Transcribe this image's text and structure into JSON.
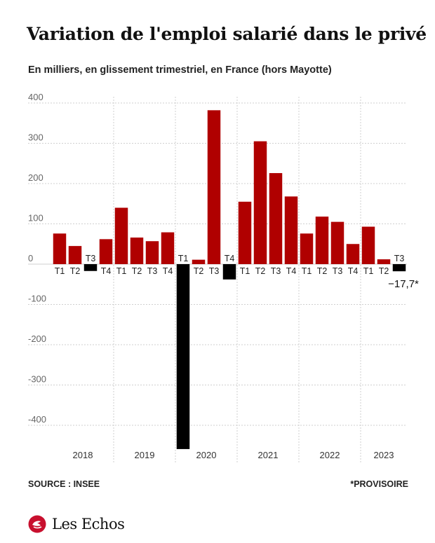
{
  "title": "Variation de l'emploi salarié dans le privé",
  "subtitle": "En milliers, en glissement trimestriel, en France (hors Mayotte)",
  "source": "SOURCE : INSEE",
  "note": "*PROVISOIRE",
  "brand": "Les Echos",
  "colors": {
    "positive": "#b00000",
    "negative": "#000000",
    "grid": "#cfcfcf",
    "axis_text": "#666666",
    "label_text": "#222222"
  },
  "chart_data": {
    "type": "bar",
    "title": "Variation de l'emploi salarié dans le privé",
    "ylim": [
      -460,
      420
    ],
    "yticks": [
      400,
      300,
      200,
      100,
      0,
      -100,
      -200,
      -300,
      -400
    ],
    "ytick_labels": [
      "400",
      "300",
      "200",
      "100",
      "0",
      "-100",
      "-200",
      "-300",
      "-400"
    ],
    "grid": true,
    "years": [
      "2018",
      "2019",
      "2020",
      "2021",
      "2022",
      "2023"
    ],
    "categories": [
      "T1",
      "T2",
      "T3",
      "T4",
      "T1",
      "T2",
      "T3",
      "T4",
      "T1",
      "T2",
      "T3",
      "T4",
      "T1",
      "T2",
      "T3",
      "T4",
      "T1",
      "T2",
      "T3",
      "T4",
      "T1",
      "T2",
      "T3"
    ],
    "year_of": [
      "2018",
      "2018",
      "2018",
      "2018",
      "2019",
      "2019",
      "2019",
      "2019",
      "2020",
      "2020",
      "2020",
      "2020",
      "2021",
      "2021",
      "2021",
      "2021",
      "2022",
      "2022",
      "2022",
      "2022",
      "2023",
      "2023",
      "2023"
    ],
    "values": [
      76,
      45,
      -17,
      62,
      140,
      66,
      57,
      79,
      -459,
      11,
      382,
      -38,
      155,
      305,
      226,
      168,
      76,
      118,
      105,
      50,
      93,
      12,
      -17.7
    ],
    "annotations": [
      {
        "index": 22,
        "text": "−17,7*"
      }
    ]
  }
}
